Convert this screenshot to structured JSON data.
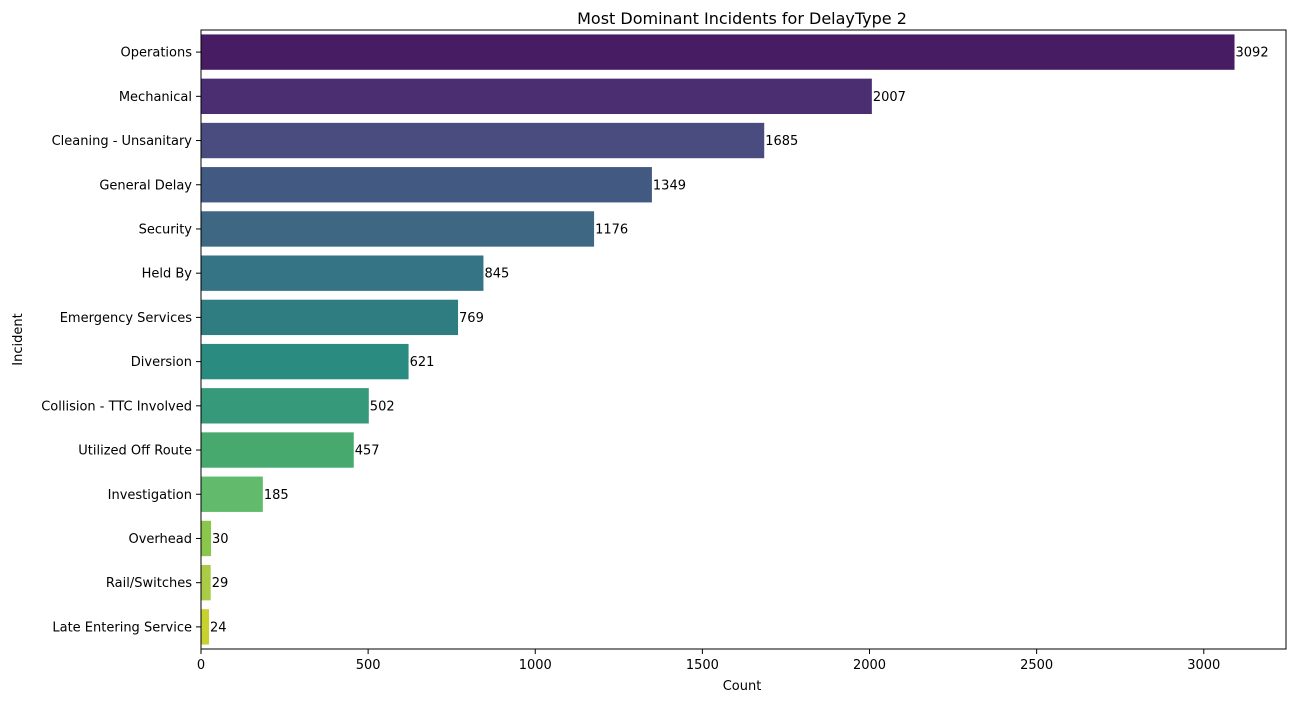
{
  "chart_data": {
    "type": "bar",
    "orientation": "horizontal",
    "title": "Most Dominant Incidents for DelayType 2",
    "xlabel": "Count",
    "ylabel": "Incident",
    "categories": [
      "Operations",
      "Mechanical",
      "Cleaning - Unsanitary",
      "General Delay",
      "Security",
      "Held By",
      "Emergency Services",
      "Diversion",
      "Collision - TTC Involved",
      "Utilized Off Route",
      "Investigation",
      "Overhead",
      "Rail/Switches",
      "Late Entering Service"
    ],
    "values": [
      3092,
      2007,
      1685,
      1349,
      1176,
      845,
      769,
      621,
      502,
      457,
      185,
      30,
      29,
      24
    ],
    "data_labels": [
      "3092",
      "2007",
      "1685",
      "1349",
      "1176",
      "845",
      "769",
      "621",
      "502",
      "457",
      "185",
      "30",
      "29",
      "24"
    ],
    "colors": [
      "#481c62",
      "#4b2e72",
      "#4a4b7e",
      "#425981",
      "#3d6783",
      "#357484",
      "#2f7d80",
      "#2a8b80",
      "#35997a",
      "#48a96f",
      "#62bb6d",
      "#8ac64b",
      "#a9cb45",
      "#c7d130"
    ],
    "xlim": [
      0,
      3246
    ],
    "xticks": [
      0,
      500,
      1000,
      1500,
      2000,
      2500,
      3000
    ],
    "xtick_labels": [
      "0",
      "500",
      "1000",
      "1500",
      "2000",
      "2500",
      "3000"
    ],
    "grid": false,
    "legend": "none"
  }
}
